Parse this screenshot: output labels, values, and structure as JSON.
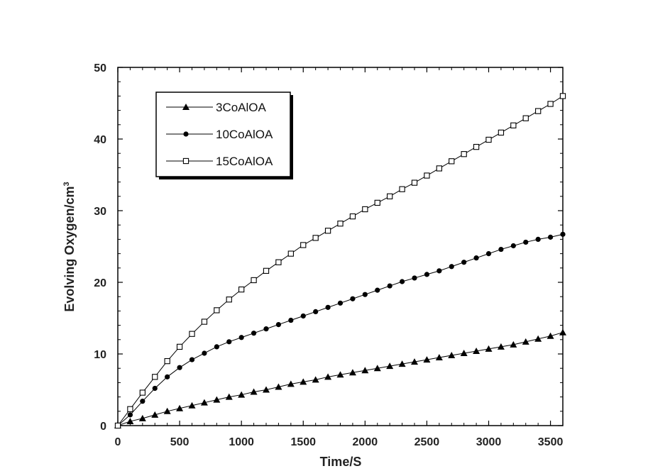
{
  "chart_data": {
    "type": "scatter",
    "xlabel": "Time/S",
    "ylabel": "Evolving Oxygen/cm",
    "ylabel_superscript": "3",
    "xlim": [
      0,
      3600
    ],
    "ylim": [
      0,
      50
    ],
    "x_ticks": [
      "0",
      "500",
      "1000",
      "1500",
      "2000",
      "2500",
      "3000",
      "3500"
    ],
    "y_ticks": [
      "0",
      "10",
      "20",
      "30",
      "40",
      "50"
    ],
    "grid": false,
    "legend_position": "top-left",
    "series": [
      {
        "name": "3CoAlOA",
        "marker": "filled-triangle",
        "color": "#000000",
        "x": [
          0,
          100,
          200,
          300,
          400,
          500,
          600,
          700,
          800,
          900,
          1000,
          1100,
          1200,
          1300,
          1400,
          1500,
          1600,
          1700,
          1800,
          1900,
          2000,
          2100,
          2200,
          2300,
          2400,
          2500,
          2600,
          2700,
          2800,
          2900,
          3000,
          3100,
          3200,
          3300,
          3400,
          3500,
          3600
        ],
        "y": [
          0,
          0.6,
          1.0,
          1.5,
          2.0,
          2.4,
          2.8,
          3.2,
          3.6,
          4.0,
          4.3,
          4.7,
          5.0,
          5.4,
          5.8,
          6.1,
          6.4,
          6.8,
          7.1,
          7.4,
          7.7,
          8.0,
          8.3,
          8.6,
          8.9,
          9.2,
          9.5,
          9.8,
          10.1,
          10.4,
          10.7,
          11.0,
          11.3,
          11.7,
          12.1,
          12.5,
          13.0
        ]
      },
      {
        "name": "10CoAlOA",
        "marker": "filled-circle",
        "color": "#000000",
        "x": [
          0,
          100,
          200,
          300,
          400,
          500,
          600,
          700,
          800,
          900,
          1000,
          1100,
          1200,
          1300,
          1400,
          1500,
          1600,
          1700,
          1800,
          1900,
          2000,
          2100,
          2200,
          2300,
          2400,
          2500,
          2600,
          2700,
          2800,
          2900,
          3000,
          3100,
          3200,
          3300,
          3400,
          3500,
          3600
        ],
        "y": [
          0,
          1.5,
          3.4,
          5.2,
          6.8,
          8.1,
          9.2,
          10.1,
          11.0,
          11.7,
          12.3,
          12.9,
          13.5,
          14.1,
          14.7,
          15.3,
          15.9,
          16.5,
          17.1,
          17.7,
          18.3,
          18.9,
          19.5,
          20.1,
          20.6,
          21.1,
          21.6,
          22.2,
          22.8,
          23.4,
          24.0,
          24.6,
          25.1,
          25.6,
          26.0,
          26.3,
          26.7
        ]
      },
      {
        "name": "15CoAlOA",
        "marker": "open-square",
        "color": "#000000",
        "x": [
          0,
          100,
          200,
          300,
          400,
          500,
          600,
          700,
          800,
          900,
          1000,
          1100,
          1200,
          1300,
          1400,
          1500,
          1600,
          1700,
          1800,
          1900,
          2000,
          2100,
          2200,
          2300,
          2400,
          2500,
          2600,
          2700,
          2800,
          2900,
          3000,
          3100,
          3200,
          3300,
          3400,
          3500,
          3600
        ],
        "y": [
          0,
          2.3,
          4.6,
          6.8,
          9.0,
          11.0,
          12.8,
          14.5,
          16.1,
          17.6,
          19.0,
          20.3,
          21.6,
          22.8,
          24.0,
          25.2,
          26.2,
          27.2,
          28.2,
          29.2,
          30.2,
          31.1,
          32.0,
          33.0,
          33.9,
          34.9,
          35.9,
          36.9,
          37.9,
          38.9,
          39.9,
          40.9,
          41.9,
          42.9,
          43.9,
          44.9,
          46.0
        ]
      }
    ]
  }
}
